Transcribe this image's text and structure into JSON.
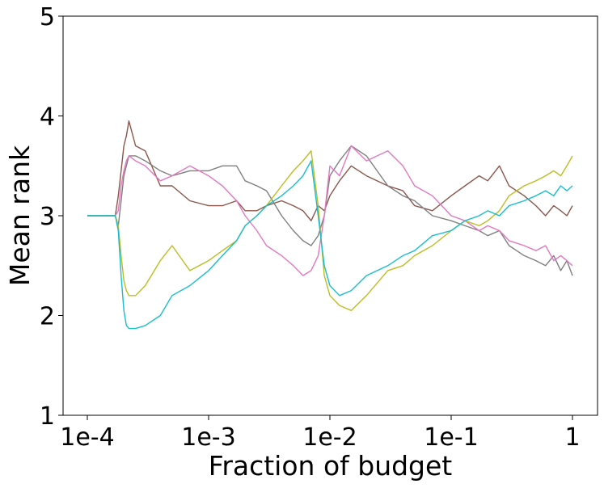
{
  "chart_data": {
    "type": "line",
    "title": "",
    "xlabel": "Fraction of budget",
    "ylabel": "Mean rank",
    "xscale": "log",
    "xlim": [
      0.0001,
      1
    ],
    "ylim": [
      1,
      5
    ],
    "xticks": [
      {
        "value": 0.0001,
        "label": "1e-4"
      },
      {
        "value": 0.001,
        "label": "1e-3"
      },
      {
        "value": 0.01,
        "label": "1e-2"
      },
      {
        "value": 0.1,
        "label": "1e-1"
      },
      {
        "value": 1,
        "label": "1"
      }
    ],
    "yticks": [
      {
        "value": 1,
        "label": "1"
      },
      {
        "value": 2,
        "label": "2"
      },
      {
        "value": 3,
        "label": "3"
      },
      {
        "value": 4,
        "label": "4"
      },
      {
        "value": 5,
        "label": "5"
      }
    ],
    "grid": false,
    "legend": false,
    "series": [
      {
        "color": "#8c564b",
        "x": [
          0.0001,
          0.00017,
          0.00018,
          0.00019,
          0.0002,
          0.00021,
          0.00022,
          0.00025,
          0.0003,
          0.0004,
          0.0005,
          0.0007,
          0.001,
          0.0013,
          0.0017,
          0.002,
          0.0025,
          0.003,
          0.004,
          0.005,
          0.006,
          0.007,
          0.008,
          0.009,
          0.01,
          0.012,
          0.015,
          0.02,
          0.03,
          0.04,
          0.05,
          0.07,
          0.1,
          0.13,
          0.17,
          0.2,
          0.25,
          0.3,
          0.4,
          0.5,
          0.6,
          0.7,
          0.8,
          0.9,
          1
        ],
        "y": [
          3.0,
          3.0,
          3.2,
          3.45,
          3.7,
          3.8,
          3.95,
          3.7,
          3.65,
          3.3,
          3.3,
          3.15,
          3.1,
          3.1,
          3.15,
          3.05,
          3.05,
          3.1,
          3.15,
          3.1,
          3.05,
          2.95,
          3.1,
          3.05,
          3.2,
          3.35,
          3.5,
          3.4,
          3.3,
          3.25,
          3.1,
          3.05,
          3.2,
          3.3,
          3.4,
          3.35,
          3.5,
          3.3,
          3.2,
          3.1,
          3.0,
          3.1,
          3.05,
          3.0,
          3.1
        ]
      },
      {
        "color": "#7f7f7f",
        "x": [
          0.0001,
          0.00017,
          0.00018,
          0.00019,
          0.0002,
          0.00021,
          0.00022,
          0.00025,
          0.0003,
          0.0004,
          0.0005,
          0.0007,
          0.001,
          0.0013,
          0.0017,
          0.002,
          0.0025,
          0.003,
          0.004,
          0.005,
          0.006,
          0.007,
          0.008,
          0.009,
          0.01,
          0.012,
          0.015,
          0.02,
          0.03,
          0.04,
          0.05,
          0.07,
          0.1,
          0.13,
          0.17,
          0.2,
          0.25,
          0.3,
          0.4,
          0.5,
          0.6,
          0.7,
          0.8,
          0.9,
          1
        ],
        "y": [
          3.0,
          3.0,
          2.9,
          3.15,
          3.4,
          3.5,
          3.6,
          3.6,
          3.55,
          3.45,
          3.4,
          3.45,
          3.45,
          3.5,
          3.5,
          3.35,
          3.3,
          3.25,
          3.0,
          2.85,
          2.75,
          2.7,
          2.8,
          3.0,
          3.4,
          3.55,
          3.7,
          3.6,
          3.3,
          3.2,
          3.15,
          3.0,
          2.95,
          2.9,
          2.85,
          2.8,
          2.85,
          2.7,
          2.6,
          2.55,
          2.5,
          2.6,
          2.45,
          2.55,
          2.4
        ]
      },
      {
        "color": "#e377c2",
        "x": [
          0.0001,
          0.00017,
          0.00018,
          0.00019,
          0.0002,
          0.00021,
          0.00022,
          0.00025,
          0.0003,
          0.0004,
          0.0005,
          0.0007,
          0.001,
          0.0013,
          0.0017,
          0.002,
          0.0025,
          0.003,
          0.004,
          0.005,
          0.006,
          0.007,
          0.008,
          0.009,
          0.01,
          0.012,
          0.015,
          0.02,
          0.03,
          0.04,
          0.05,
          0.07,
          0.1,
          0.13,
          0.17,
          0.2,
          0.25,
          0.3,
          0.4,
          0.5,
          0.6,
          0.7,
          0.8,
          0.9,
          1
        ],
        "y": [
          3.0,
          3.0,
          3.05,
          3.3,
          3.45,
          3.55,
          3.6,
          3.55,
          3.5,
          3.35,
          3.4,
          3.5,
          3.4,
          3.3,
          3.15,
          3.0,
          2.85,
          2.7,
          2.6,
          2.5,
          2.4,
          2.45,
          2.6,
          3.0,
          3.5,
          3.4,
          3.7,
          3.55,
          3.65,
          3.5,
          3.3,
          3.2,
          3.0,
          2.95,
          2.85,
          2.9,
          2.85,
          2.75,
          2.7,
          2.65,
          2.7,
          2.55,
          2.6,
          2.55,
          2.5
        ]
      },
      {
        "color": "#bcbd22",
        "x": [
          0.0001,
          0.00017,
          0.00018,
          0.00019,
          0.0002,
          0.00021,
          0.00022,
          0.00025,
          0.0003,
          0.0004,
          0.0005,
          0.0007,
          0.001,
          0.0013,
          0.0017,
          0.002,
          0.0025,
          0.003,
          0.004,
          0.005,
          0.006,
          0.007,
          0.008,
          0.009,
          0.01,
          0.012,
          0.015,
          0.02,
          0.03,
          0.04,
          0.05,
          0.07,
          0.1,
          0.13,
          0.17,
          0.2,
          0.25,
          0.3,
          0.4,
          0.5,
          0.6,
          0.7,
          0.8,
          0.9,
          1
        ],
        "y": [
          3.0,
          3.0,
          2.9,
          2.6,
          2.35,
          2.25,
          2.2,
          2.2,
          2.3,
          2.55,
          2.7,
          2.45,
          2.55,
          2.65,
          2.75,
          2.9,
          3.0,
          3.1,
          3.3,
          3.45,
          3.55,
          3.65,
          3.1,
          2.4,
          2.2,
          2.1,
          2.05,
          2.2,
          2.45,
          2.5,
          2.6,
          2.7,
          2.85,
          2.95,
          2.9,
          2.95,
          3.05,
          3.2,
          3.3,
          3.35,
          3.4,
          3.45,
          3.4,
          3.5,
          3.6
        ]
      },
      {
        "color": "#17becf",
        "x": [
          0.0001,
          0.00017,
          0.00018,
          0.00019,
          0.0002,
          0.00021,
          0.00022,
          0.00025,
          0.0003,
          0.0004,
          0.0005,
          0.0007,
          0.001,
          0.0013,
          0.0017,
          0.002,
          0.0025,
          0.003,
          0.004,
          0.005,
          0.006,
          0.007,
          0.008,
          0.009,
          0.01,
          0.012,
          0.015,
          0.02,
          0.03,
          0.04,
          0.05,
          0.07,
          0.1,
          0.13,
          0.17,
          0.2,
          0.25,
          0.3,
          0.4,
          0.5,
          0.6,
          0.7,
          0.8,
          0.9,
          1
        ],
        "y": [
          3.0,
          3.0,
          2.85,
          2.4,
          2.05,
          1.9,
          1.87,
          1.87,
          1.9,
          2.0,
          2.2,
          2.3,
          2.45,
          2.6,
          2.75,
          2.9,
          3.0,
          3.1,
          3.2,
          3.3,
          3.4,
          3.55,
          3.0,
          2.5,
          2.3,
          2.2,
          2.25,
          2.4,
          2.5,
          2.6,
          2.65,
          2.8,
          2.85,
          2.95,
          3.0,
          3.05,
          3.0,
          3.1,
          3.15,
          3.2,
          3.25,
          3.2,
          3.3,
          3.25,
          3.3
        ]
      }
    ]
  }
}
